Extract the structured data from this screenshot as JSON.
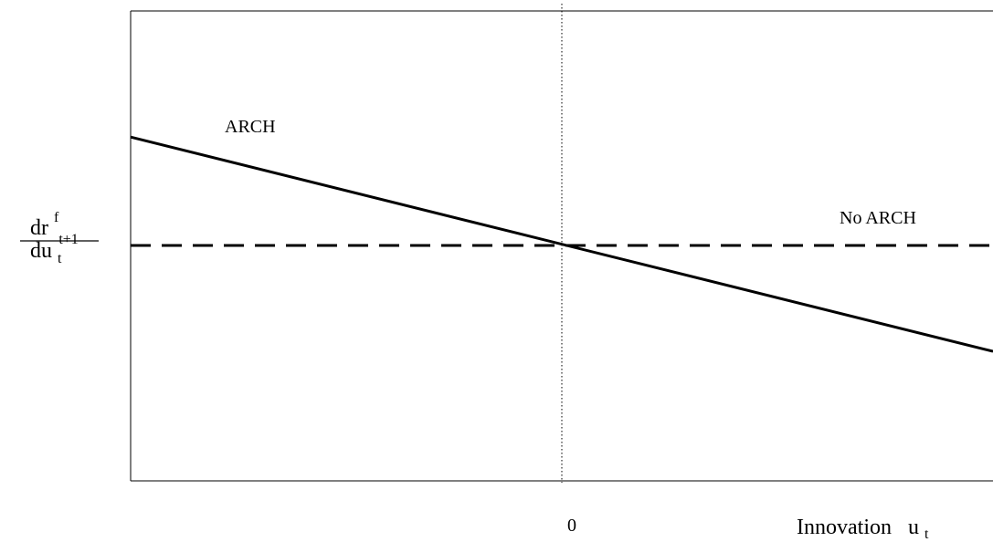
{
  "chart_data": {
    "type": "line",
    "xlabel": {
      "main": "Innovation",
      "var": "u",
      "sub": "t"
    },
    "ylabel": {
      "num_main": "dr",
      "num_sup": "f",
      "num_sub": "t+1",
      "den_main": "du",
      "den_sub": "t"
    },
    "tick_labels": {
      "x_zero": "0"
    },
    "xlim": [
      -1,
      1
    ],
    "ylim": [
      -1,
      1
    ],
    "zero_reference_line": "dotted vertical at x = 0",
    "grid": false,
    "series": [
      {
        "name": "ARCH",
        "style": "solid",
        "color": "#000000",
        "x": [
          -1,
          1
        ],
        "y": [
          0.44,
          -0.43
        ]
      },
      {
        "name": "No ARCH",
        "style": "dashed",
        "color": "#000000",
        "x": [
          -1,
          1
        ],
        "y": [
          0.0,
          0.0
        ]
      }
    ]
  }
}
